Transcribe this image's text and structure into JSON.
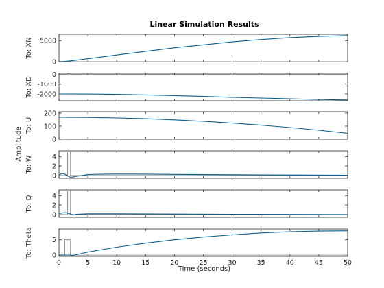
{
  "chart_data": {
    "type": "line",
    "title": "Linear Simulation Results",
    "xlabel": "Time (seconds)",
    "ylabel": "Amplitude",
    "xlim": [
      0,
      50
    ],
    "xticks": [
      0,
      5,
      10,
      15,
      20,
      25,
      30,
      35,
      40,
      45,
      50
    ],
    "colors": {
      "response": "#0b5e8a",
      "input": "#808080",
      "axes": "#262626",
      "grid": "#cfcfcf"
    },
    "grid": false,
    "panels": [
      {
        "label": "To: XN",
        "ylim": [
          0,
          6500
        ],
        "yticks": [
          0,
          5000
        ],
        "response": {
          "x": [
            0,
            1,
            2,
            5,
            10,
            15,
            20,
            25,
            30,
            35,
            40,
            45,
            50
          ],
          "y": [
            0,
            80,
            200,
            700,
            1600,
            2450,
            3300,
            4000,
            4700,
            5250,
            5700,
            6000,
            6200
          ]
        },
        "input": {
          "x": [
            0,
            1.5,
            1.5,
            2,
            2,
            50
          ],
          "y": [
            0,
            0,
            40,
            40,
            0,
            0
          ]
        }
      },
      {
        "label": "To: XD",
        "ylim": [
          -2700,
          100
        ],
        "yticks": [
          -2000,
          -1000,
          0
        ],
        "response": {
          "x": [
            0,
            5,
            10,
            15,
            20,
            25,
            30,
            35,
            40,
            45,
            50
          ],
          "y": [
            -2000,
            -2010,
            -2040,
            -2100,
            -2170,
            -2250,
            -2340,
            -2420,
            -2500,
            -2570,
            -2620
          ]
        },
        "input": {
          "x": [
            0,
            1.5,
            1.5,
            2,
            2,
            50
          ],
          "y": [
            0,
            0,
            20,
            20,
            0,
            0
          ]
        }
      },
      {
        "label": "To: U",
        "ylim": [
          0,
          210
        ],
        "yticks": [
          0,
          100,
          200
        ],
        "response": {
          "x": [
            0,
            5,
            10,
            15,
            20,
            25,
            30,
            35,
            40,
            45,
            50
          ],
          "y": [
            168,
            167,
            163,
            157,
            148,
            137,
            123,
            107,
            89,
            68,
            45
          ]
        },
        "input": {
          "x": [
            0,
            1,
            1,
            2,
            2,
            50
          ],
          "y": [
            0,
            0,
            1.5,
            1.5,
            0,
            0
          ]
        }
      },
      {
        "label": "To: W",
        "ylim": [
          -0.6,
          5.2
        ],
        "yticks": [
          0,
          2,
          4
        ],
        "response": {
          "x": [
            0,
            0.5,
            1.0,
            1.5,
            2.0,
            2.5,
            3,
            4,
            5,
            7,
            10,
            15,
            20,
            30,
            40,
            50
          ],
          "y": [
            0.1,
            0.4,
            0.3,
            -0.1,
            -0.4,
            -0.3,
            -0.2,
            0.0,
            0.2,
            0.25,
            0.3,
            0.28,
            0.22,
            0.15,
            0.1,
            0.05
          ]
        },
        "input": {
          "x": [
            0,
            1.5,
            1.5,
            2,
            2,
            50
          ],
          "y": [
            0,
            0,
            5,
            5,
            0,
            0
          ]
        }
      },
      {
        "label": "To: Q",
        "ylim": [
          -0.6,
          5.2
        ],
        "yticks": [
          0,
          2,
          4
        ],
        "response": {
          "x": [
            0,
            1,
            1.5,
            2,
            2.5,
            3,
            4,
            5,
            10,
            20,
            30,
            40,
            50
          ],
          "y": [
            0.2,
            0.4,
            0.3,
            0.1,
            -0.1,
            0.05,
            0.1,
            0.15,
            0.15,
            0.1,
            0.05,
            0.02,
            0.0
          ]
        },
        "input": {
          "x": [
            0,
            1.5,
            1.5,
            2,
            2,
            50
          ],
          "y": [
            0,
            0,
            5,
            5,
            0,
            0
          ]
        }
      },
      {
        "label": "To: Theta",
        "ylim": [
          -0.4,
          8.5
        ],
        "yticks": [
          0,
          5
        ],
        "response": {
          "x": [
            0,
            1,
            2,
            2.5,
            3,
            4,
            5,
            10,
            15,
            20,
            25,
            30,
            35,
            40,
            45,
            50
          ],
          "y": [
            0,
            0.05,
            0,
            -0.1,
            0.2,
            0.6,
            1.0,
            2.6,
            3.9,
            5.0,
            5.9,
            6.6,
            7.2,
            7.6,
            7.8,
            7.9
          ]
        },
        "input": {
          "x": [
            0,
            1,
            1,
            2,
            2,
            50
          ],
          "y": [
            0,
            0,
            5,
            5,
            0,
            0
          ]
        }
      }
    ]
  }
}
